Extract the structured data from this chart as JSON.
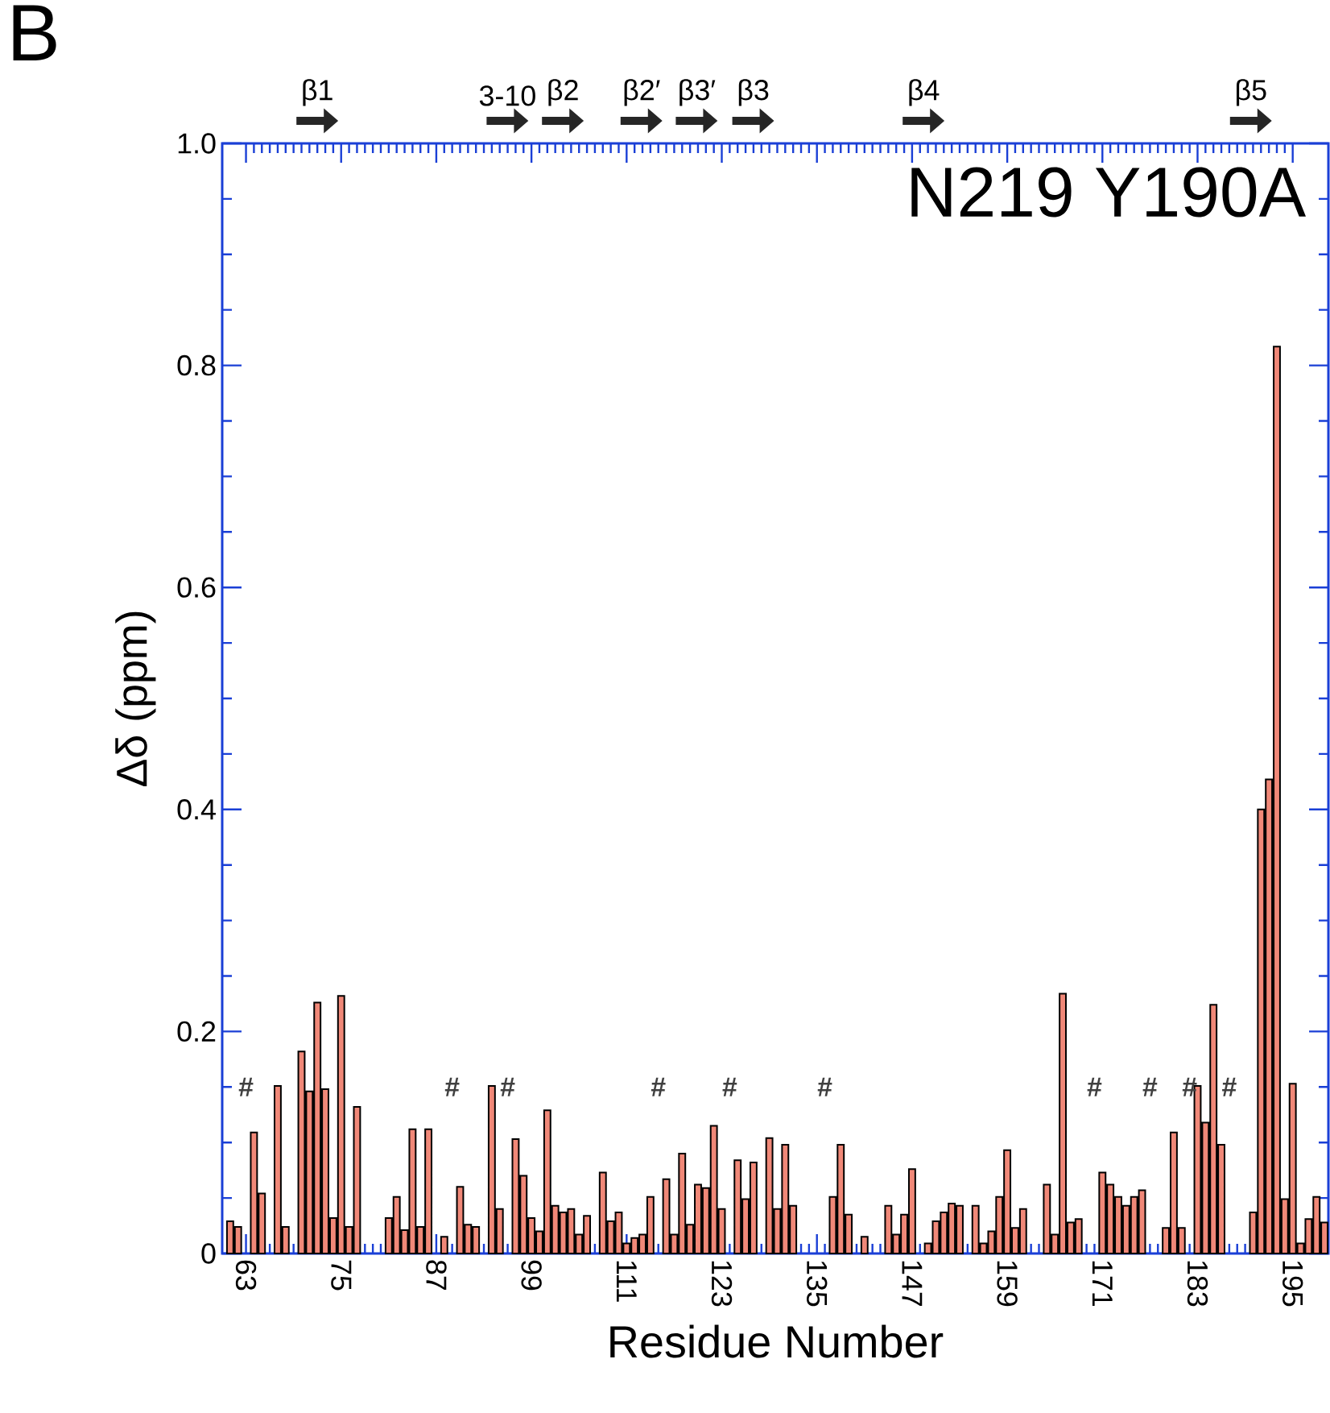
{
  "chart_data": {
    "type": "bar",
    "title": "N219 Y190A",
    "xlabel": "Residue Number",
    "ylabel": "Δδ (ppm)",
    "x": [
      61,
      62,
      63,
      64,
      65,
      67,
      68,
      70,
      71,
      72,
      73,
      74,
      75,
      76,
      77,
      81,
      82,
      83,
      84,
      85,
      86,
      88,
      89,
      90,
      91,
      92,
      94,
      95,
      96,
      97,
      98,
      99,
      100,
      101,
      102,
      103,
      104,
      105,
      106,
      108,
      109,
      110,
      111,
      112,
      113,
      114,
      115,
      116,
      117,
      118,
      119,
      120,
      121,
      122,
      123,
      124,
      125,
      126,
      127,
      129,
      130,
      131,
      132,
      136,
      137,
      138,
      139,
      141,
      144,
      145,
      146,
      147,
      149,
      150,
      151,
      152,
      153,
      155,
      156,
      157,
      158,
      159,
      160,
      161,
      164,
      165,
      166,
      167,
      168,
      170,
      171,
      172,
      173,
      174,
      175,
      176,
      177,
      179,
      180,
      181,
      182,
      183,
      184,
      185,
      186,
      187,
      190,
      191,
      192,
      193,
      194,
      195,
      196,
      197,
      198,
      199
    ],
    "values": [
      0.029,
      0.024,
      null,
      0.109,
      0.054,
      0.151,
      0.024,
      0.182,
      0.146,
      0.226,
      0.148,
      0.032,
      0.232,
      0.024,
      0.132,
      0.032,
      0.051,
      0.021,
      0.112,
      0.024,
      0.112,
      0.015,
      null,
      0.06,
      0.026,
      0.024,
      0.151,
      0.04,
      null,
      0.103,
      0.07,
      0.032,
      0.02,
      0.129,
      0.043,
      0.037,
      0.04,
      0.017,
      0.034,
      0.073,
      0.029,
      0.037,
      0.009,
      0.014,
      0.017,
      0.051,
      null,
      0.067,
      0.017,
      0.09,
      0.026,
      0.062,
      0.059,
      0.115,
      0.04,
      null,
      0.084,
      0.049,
      0.082,
      0.104,
      0.04,
      0.098,
      0.043,
      null,
      0.051,
      0.098,
      0.035,
      0.015,
      0.043,
      0.017,
      0.035,
      0.076,
      0.009,
      0.029,
      0.037,
      0.045,
      0.043,
      0.043,
      0.009,
      0.02,
      0.051,
      0.093,
      0.023,
      0.04,
      0.062,
      0.017,
      0.234,
      0.028,
      0.031,
      null,
      0.073,
      0.062,
      0.051,
      0.043,
      0.051,
      0.057,
      null,
      0.023,
      0.109,
      0.023,
      null,
      0.151,
      0.118,
      0.224,
      0.098,
      null,
      0.037,
      0.4,
      0.427,
      0.817,
      0.049,
      0.153,
      0.009,
      0.031,
      0.051,
      0.028
    ],
    "value_labels": [
      null,
      null,
      "#",
      null,
      null,
      null,
      null,
      null,
      null,
      null,
      null,
      null,
      null,
      null,
      null,
      null,
      null,
      null,
      null,
      null,
      null,
      null,
      "#",
      null,
      null,
      null,
      null,
      null,
      "#",
      null,
      null,
      null,
      null,
      null,
      null,
      null,
      null,
      null,
      null,
      null,
      null,
      null,
      null,
      null,
      null,
      null,
      "#",
      null,
      null,
      null,
      null,
      null,
      null,
      null,
      null,
      "#",
      null,
      null,
      null,
      null,
      null,
      null,
      null,
      "#",
      null,
      null,
      null,
      null,
      null,
      null,
      null,
      null,
      null,
      null,
      null,
      null,
      null,
      null,
      null,
      null,
      null,
      null,
      null,
      null,
      null,
      null,
      null,
      null,
      null,
      "#",
      null,
      null,
      null,
      null,
      null,
      null,
      "#",
      null,
      null,
      null,
      "#",
      null,
      null,
      null,
      null,
      "#",
      null,
      null,
      null,
      null,
      null,
      null,
      null,
      null,
      null,
      null
    ],
    "color": "#f08878",
    "xlim": [
      60,
      199.5
    ],
    "xticks": [
      63,
      75,
      87,
      99,
      111,
      123,
      135,
      147,
      159,
      171,
      183,
      195
    ],
    "ylim": [
      0,
      1
    ],
    "yticks": [
      0,
      0.2,
      0.4,
      0.6,
      0.8,
      {
        "value": 1,
        "label": "1.0"
      }
    ],
    "annotations": [
      "B",
      "β1",
      "3-10",
      "β2",
      "β2′",
      "β3′",
      "β3",
      "β4",
      "β5"
    ]
  }
}
